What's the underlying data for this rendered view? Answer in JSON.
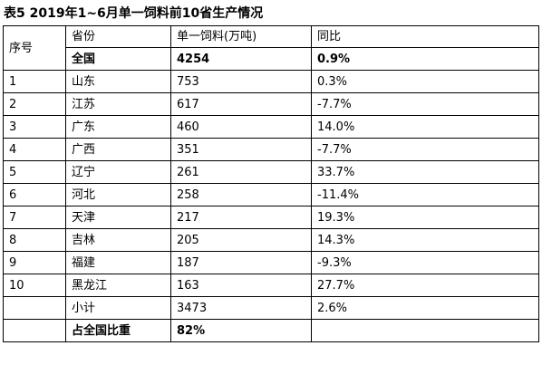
{
  "title": "表5 2019年1~6月单一饲料前10省生产情况",
  "headers": {
    "rank": "序号",
    "province": "省份",
    "output": "单一饲料(万吨)",
    "yoy": "同比"
  },
  "total": {
    "label": "全国",
    "output": "4254",
    "yoy": "0.9%"
  },
  "rows": [
    {
      "rank": "1",
      "province": "山东",
      "output": "753",
      "yoy": "0.3%"
    },
    {
      "rank": "2",
      "province": "江苏",
      "output": "617",
      "yoy": "-7.7%"
    },
    {
      "rank": "3",
      "province": "广东",
      "output": "460",
      "yoy": "14.0%"
    },
    {
      "rank": "4",
      "province": "广西",
      "output": "351",
      "yoy": "-7.7%"
    },
    {
      "rank": "5",
      "province": "辽宁",
      "output": "261",
      "yoy": "33.7%"
    },
    {
      "rank": "6",
      "province": "河北",
      "output": "258",
      "yoy": "-11.4%"
    },
    {
      "rank": "7",
      "province": "天津",
      "output": "217",
      "yoy": "19.3%"
    },
    {
      "rank": "8",
      "province": "吉林",
      "output": "205",
      "yoy": "14.3%"
    },
    {
      "rank": "9",
      "province": "福建",
      "output": "187",
      "yoy": "-9.3%"
    },
    {
      "rank": "10",
      "province": "黑龙江",
      "output": "163",
      "yoy": "27.7%"
    }
  ],
  "subtotal": {
    "label": "小计",
    "output": "3473",
    "yoy": "2.6%"
  },
  "share": {
    "label": "占全国比重",
    "value": "82%"
  }
}
